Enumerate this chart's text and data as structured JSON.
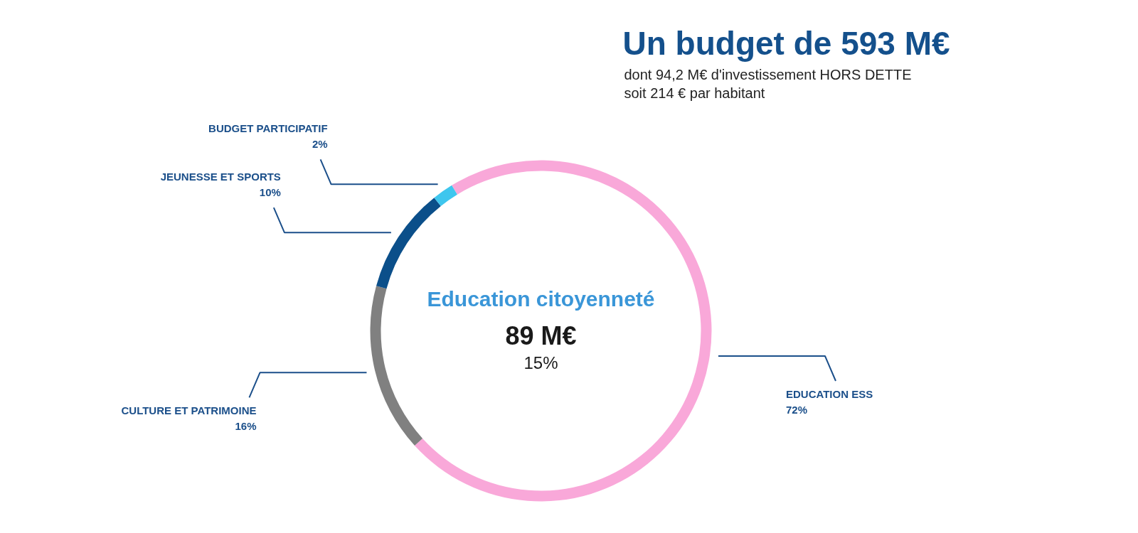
{
  "chart_data": {
    "type": "donut",
    "title": "Un budget de 593 M€",
    "subtitle": "dont 94,2 M€ d'investissement HORS DETTE\nsoit 214 € par habitant",
    "categories": [
      "EDUCATION ESS",
      "CULTURE ET PATRIMOINE",
      "JEUNESSE ET SPORTS",
      "BUDGET PARTICIPATIF"
    ],
    "values": [
      72,
      16,
      10,
      2
    ],
    "colors": [
      "#f9a8d9",
      "#808080",
      "#0b4f8a",
      "#3ec6ee"
    ],
    "value_labels": [
      "72%",
      "16%",
      "10%",
      "2%"
    ],
    "annotations": [
      "Education citoyenneté",
      "89 M€",
      "15%"
    ]
  }
}
